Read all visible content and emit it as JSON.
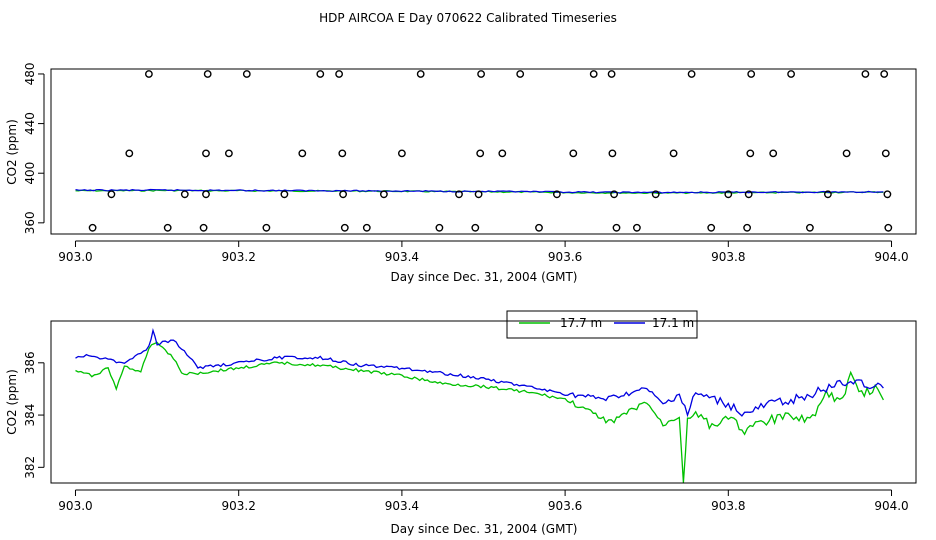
{
  "title": "HDP AIRCOA E  Day 070622  Calibrated Timeseries",
  "colors": {
    "green": "#00c000",
    "blue": "#0000e0",
    "black": "#000000"
  },
  "chart_data": [
    {
      "type": "scatter",
      "title": "",
      "xlabel": "Day since Dec. 31, 2004 (GMT)",
      "ylabel": "CO2 (ppm)",
      "xlim": [
        902.97,
        904.03
      ],
      "ylim": [
        351,
        484
      ],
      "xticks": [
        903.0,
        903.2,
        903.4,
        903.6,
        903.8,
        904.0
      ],
      "xtick_labels": [
        "903.0",
        "903.2",
        "903.4",
        "903.6",
        "903.8",
        "904.0"
      ],
      "yticks": [
        360,
        400,
        440,
        480
      ],
      "ytick_labels": [
        "360",
        "400",
        "440",
        "480"
      ],
      "points": [
        [
          903.09,
          480
        ],
        [
          903.162,
          480
        ],
        [
          903.21,
          480
        ],
        [
          903.3,
          480
        ],
        [
          903.323,
          480
        ],
        [
          903.423,
          480
        ],
        [
          903.497,
          480
        ],
        [
          903.545,
          480
        ],
        [
          903.635,
          480
        ],
        [
          903.657,
          480
        ],
        [
          903.755,
          480
        ],
        [
          903.828,
          480
        ],
        [
          903.877,
          480
        ],
        [
          903.968,
          480
        ],
        [
          903.991,
          480
        ],
        [
          903.066,
          416
        ],
        [
          903.16,
          416
        ],
        [
          903.188,
          416
        ],
        [
          903.278,
          416
        ],
        [
          903.327,
          416
        ],
        [
          903.4,
          416
        ],
        [
          903.496,
          416
        ],
        [
          903.523,
          416
        ],
        [
          903.61,
          416
        ],
        [
          903.658,
          416
        ],
        [
          903.733,
          416
        ],
        [
          903.827,
          416
        ],
        [
          903.855,
          416
        ],
        [
          903.945,
          416
        ],
        [
          903.993,
          416
        ],
        [
          903.044,
          383
        ],
        [
          903.134,
          383
        ],
        [
          903.16,
          383
        ],
        [
          903.256,
          383
        ],
        [
          903.328,
          383
        ],
        [
          903.378,
          383
        ],
        [
          903.47,
          383
        ],
        [
          903.494,
          383
        ],
        [
          903.59,
          383
        ],
        [
          903.66,
          383
        ],
        [
          903.711,
          383
        ],
        [
          903.8,
          383
        ],
        [
          903.825,
          383
        ],
        [
          903.922,
          383
        ],
        [
          903.995,
          383
        ],
        [
          903.021,
          356
        ],
        [
          903.113,
          356
        ],
        [
          903.157,
          356
        ],
        [
          903.234,
          356
        ],
        [
          903.33,
          356
        ],
        [
          903.357,
          356
        ],
        [
          903.446,
          356
        ],
        [
          903.49,
          356
        ],
        [
          903.568,
          356
        ],
        [
          903.663,
          356
        ],
        [
          903.688,
          356
        ],
        [
          903.779,
          356
        ],
        [
          903.823,
          356
        ],
        [
          903.9,
          356
        ],
        [
          903.996,
          356
        ]
      ],
      "series": [
        {
          "name": "17.7 m",
          "color": "#00c000",
          "x_start": 903.0,
          "x_end": 903.99,
          "values": [
            385.8,
            385.9,
            386.1,
            385.9,
            385.8,
            385.7,
            385.6,
            385.5,
            385.2,
            385.0,
            384.8,
            384.4,
            384.2,
            384.0,
            384.2,
            384.3,
            384.4,
            384.6,
            384.8
          ]
        },
        {
          "name": "17.1 m",
          "color": "#0000e0",
          "x_start": 903.0,
          "x_end": 903.99,
          "values": [
            386.3,
            386.3,
            386.4,
            386.2,
            386.1,
            386.0,
            385.9,
            385.7,
            385.5,
            385.3,
            385.1,
            384.8,
            384.6,
            384.5,
            384.6,
            384.7,
            384.8,
            384.9,
            385.0
          ]
        }
      ]
    },
    {
      "type": "line",
      "title": "",
      "xlabel": "Day since Dec. 31, 2004 (GMT)",
      "ylabel": "CO2 (ppm)",
      "xlim": [
        902.97,
        904.03
      ],
      "ylim": [
        381.4,
        387.6
      ],
      "xticks": [
        903.0,
        903.2,
        903.4,
        903.6,
        903.8,
        904.0
      ],
      "xtick_labels": [
        "903.0",
        "903.2",
        "903.4",
        "903.6",
        "903.8",
        "904.0"
      ],
      "yticks": [
        382,
        384,
        386
      ],
      "ytick_labels": [
        "382",
        "384",
        "386"
      ],
      "legend": {
        "placement": "top-right",
        "labels": [
          "17.7 m",
          "17.1 m"
        ]
      },
      "series": [
        {
          "name": "17.7 m",
          "color": "#00c000",
          "x": [
            903.0,
            903.02,
            903.04,
            903.05,
            903.06,
            903.08,
            903.09,
            903.1,
            903.12,
            903.13,
            903.15,
            903.2,
            903.25,
            903.3,
            903.35,
            903.4,
            903.45,
            903.5,
            903.55,
            903.6,
            903.65,
            903.66,
            903.7,
            903.72,
            903.74,
            903.745,
            903.75,
            903.76,
            903.78,
            903.8,
            903.82,
            903.85,
            903.88,
            903.9,
            903.92,
            903.94,
            903.95,
            903.96,
            903.98,
            903.99
          ],
          "values": [
            385.7,
            385.5,
            385.8,
            385.0,
            385.9,
            385.6,
            386.6,
            386.8,
            386.2,
            385.6,
            385.6,
            385.8,
            386.0,
            385.9,
            385.7,
            385.5,
            385.2,
            385.1,
            384.9,
            384.6,
            383.8,
            383.8,
            384.5,
            383.6,
            384.0,
            381.5,
            383.8,
            384.2,
            383.5,
            384.0,
            383.4,
            383.8,
            384.0,
            383.8,
            384.8,
            384.5,
            385.8,
            384.8,
            385.0,
            384.6
          ]
        },
        {
          "name": "17.1 m",
          "color": "#0000e0",
          "x": [
            903.0,
            903.02,
            903.04,
            903.06,
            903.08,
            903.09,
            903.095,
            903.1,
            903.12,
            903.14,
            903.15,
            903.2,
            903.25,
            903.3,
            903.35,
            903.4,
            903.45,
            903.5,
            903.55,
            903.6,
            903.65,
            903.7,
            903.72,
            903.74,
            903.75,
            903.76,
            903.78,
            903.8,
            903.82,
            903.85,
            903.88,
            903.9,
            903.92,
            903.94,
            903.96,
            903.98,
            903.99
          ],
          "values": [
            386.2,
            386.3,
            386.1,
            386.0,
            386.4,
            386.6,
            387.2,
            386.7,
            386.9,
            386.2,
            385.8,
            386.0,
            386.2,
            386.2,
            385.9,
            385.8,
            385.6,
            385.4,
            385.1,
            384.8,
            384.6,
            385.0,
            384.4,
            384.8,
            384.0,
            384.8,
            384.6,
            384.4,
            384.0,
            384.4,
            384.6,
            384.8,
            385.0,
            385.2,
            385.3,
            385.1,
            385.0
          ]
        }
      ]
    }
  ]
}
